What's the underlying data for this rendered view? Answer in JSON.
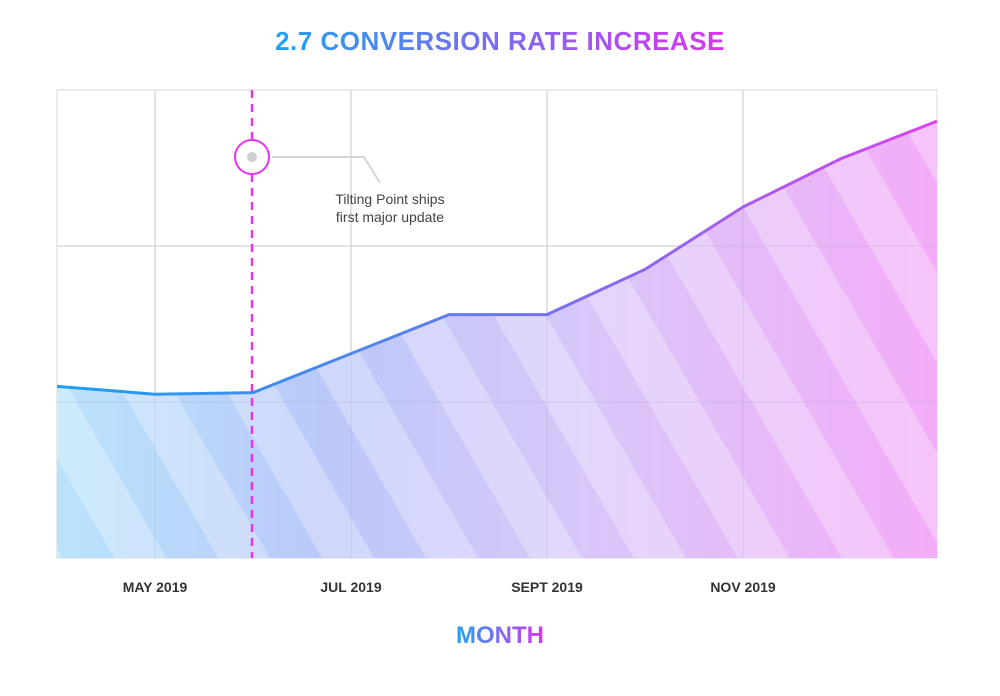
{
  "chart_data": {
    "type": "area",
    "title": "2.7 CONVERSION RATE INCREASE",
    "xlabel": "MONTH",
    "ylabel": "",
    "x_ticks": [
      "MAY 2019",
      "JUL 2019",
      "SEPT 2019",
      "NOV 2019"
    ],
    "series": [
      {
        "x": [
          "2019-04",
          "2019-05",
          "2019-06",
          "2019-07",
          "2019-08",
          "2019-09",
          "2019-10",
          "2019-11",
          "2019-12",
          "2020-01"
        ],
        "values": [
          1.1,
          1.05,
          1.06,
          1.31,
          1.56,
          1.56,
          1.85,
          2.25,
          2.56,
          2.8
        ]
      }
    ],
    "ylim": [
      0,
      3.0
    ],
    "grid": true,
    "annotations": [
      {
        "x": "2019-06",
        "label_line1": "Tilting Point ships",
        "label_line2": "first major update"
      }
    ],
    "colors": {
      "start": "#1fa3f2",
      "mid": "#7d6af0",
      "end": "#dd33f2",
      "marker_line": "#e535ea"
    }
  }
}
